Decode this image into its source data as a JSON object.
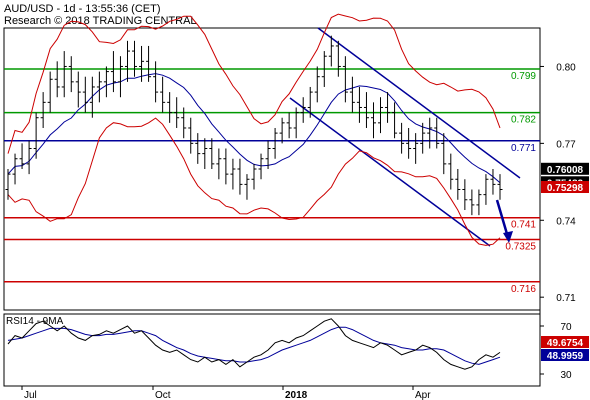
{
  "chart_data": {
    "type": "candlestick",
    "title_line1": "AUD/USD - 1d - 13:55:36 (CET)",
    "title_line2": "Research © 2018 TRADING CENTRAL",
    "x_tick_labels": [
      "Jul",
      "Oct",
      "2018",
      "Apr"
    ],
    "price_axis": {
      "ylim": [
        0.705,
        0.815
      ],
      "ticks": [
        {
          "value": 0.8,
          "label": "0.80"
        },
        {
          "value": 0.77,
          "label": "0.77"
        },
        {
          "value": 0.74,
          "label": "0.74"
        },
        {
          "value": 0.71,
          "label": "0.71"
        }
      ]
    },
    "levels": [
      {
        "value": 0.799,
        "label": "0.799",
        "color": "#009900"
      },
      {
        "value": 0.782,
        "label": "0.782",
        "color": "#009900"
      },
      {
        "value": 0.771,
        "label": "0.771",
        "color": "#000099"
      },
      {
        "value": 0.741,
        "label": "0.741",
        "color": "#cc0000"
      },
      {
        "value": 0.7325,
        "label": "0.7325",
        "color": "#cc0000"
      },
      {
        "value": 0.716,
        "label": "0.716",
        "color": "#cc0000"
      }
    ],
    "price_badges": [
      {
        "value": 0.76008,
        "label": "0.76008",
        "bg": "#000000",
        "fg": "#ffffff"
      },
      {
        "value": 0.75482,
        "label": "0.75482",
        "bg": "#000000",
        "fg": "#ffffff"
      },
      {
        "value": 0.75298,
        "label": "0.75298",
        "bg": "#cc0000",
        "fg": "#ffffff"
      }
    ],
    "bars": [
      [
        0.752,
        0.76,
        0.748,
        0.758
      ],
      [
        0.758,
        0.766,
        0.754,
        0.764
      ],
      [
        0.764,
        0.77,
        0.76,
        0.762
      ],
      [
        0.762,
        0.771,
        0.758,
        0.768
      ],
      [
        0.768,
        0.782,
        0.764,
        0.78
      ],
      [
        0.78,
        0.79,
        0.776,
        0.786
      ],
      [
        0.786,
        0.798,
        0.782,
        0.795
      ],
      [
        0.795,
        0.802,
        0.788,
        0.792
      ],
      [
        0.792,
        0.806,
        0.788,
        0.8
      ],
      [
        0.8,
        0.804,
        0.79,
        0.794
      ],
      [
        0.794,
        0.798,
        0.784,
        0.79
      ],
      [
        0.79,
        0.796,
        0.782,
        0.786
      ],
      [
        0.786,
        0.796,
        0.78,
        0.792
      ],
      [
        0.792,
        0.798,
        0.786,
        0.794
      ],
      [
        0.794,
        0.8,
        0.788,
        0.798
      ],
      [
        0.798,
        0.806,
        0.79,
        0.794
      ],
      [
        0.794,
        0.804,
        0.788,
        0.8
      ],
      [
        0.8,
        0.81,
        0.794,
        0.806
      ],
      [
        0.806,
        0.81,
        0.796,
        0.8
      ],
      [
        0.8,
        0.808,
        0.794,
        0.802
      ],
      [
        0.802,
        0.808,
        0.794,
        0.796
      ],
      [
        0.796,
        0.802,
        0.786,
        0.79
      ],
      [
        0.79,
        0.796,
        0.782,
        0.786
      ],
      [
        0.786,
        0.79,
        0.778,
        0.782
      ],
      [
        0.782,
        0.788,
        0.776,
        0.78
      ],
      [
        0.78,
        0.784,
        0.772,
        0.776
      ],
      [
        0.776,
        0.78,
        0.766,
        0.77
      ],
      [
        0.77,
        0.774,
        0.762,
        0.766
      ],
      [
        0.766,
        0.772,
        0.76,
        0.768
      ],
      [
        0.768,
        0.772,
        0.76,
        0.762
      ],
      [
        0.762,
        0.768,
        0.756,
        0.764
      ],
      [
        0.764,
        0.768,
        0.754,
        0.758
      ],
      [
        0.758,
        0.764,
        0.752,
        0.76
      ],
      [
        0.76,
        0.764,
        0.75,
        0.754
      ],
      [
        0.754,
        0.758,
        0.748,
        0.756
      ],
      [
        0.756,
        0.762,
        0.752,
        0.76
      ],
      [
        0.76,
        0.766,
        0.756,
        0.764
      ],
      [
        0.764,
        0.771,
        0.76,
        0.768
      ],
      [
        0.768,
        0.776,
        0.764,
        0.774
      ],
      [
        0.774,
        0.78,
        0.77,
        0.778
      ],
      [
        0.778,
        0.782,
        0.772,
        0.776
      ],
      [
        0.776,
        0.784,
        0.772,
        0.782
      ],
      [
        0.782,
        0.788,
        0.778,
        0.784
      ],
      [
        0.784,
        0.792,
        0.78,
        0.79
      ],
      [
        0.79,
        0.8,
        0.786,
        0.796
      ],
      [
        0.796,
        0.806,
        0.792,
        0.804
      ],
      [
        0.804,
        0.812,
        0.8,
        0.808
      ],
      [
        0.808,
        0.81,
        0.796,
        0.8
      ],
      [
        0.8,
        0.804,
        0.786,
        0.79
      ],
      [
        0.79,
        0.796,
        0.782,
        0.786
      ],
      [
        0.786,
        0.792,
        0.778,
        0.784
      ],
      [
        0.784,
        0.79,
        0.776,
        0.78
      ],
      [
        0.78,
        0.786,
        0.772,
        0.778
      ],
      [
        0.778,
        0.788,
        0.774,
        0.784
      ],
      [
        0.784,
        0.79,
        0.778,
        0.782
      ],
      [
        0.782,
        0.786,
        0.772,
        0.774
      ],
      [
        0.774,
        0.778,
        0.766,
        0.77
      ],
      [
        0.77,
        0.776,
        0.764,
        0.768
      ],
      [
        0.768,
        0.774,
        0.762,
        0.77
      ],
      [
        0.77,
        0.778,
        0.766,
        0.774
      ],
      [
        0.774,
        0.78,
        0.768,
        0.776
      ],
      [
        0.776,
        0.78,
        0.768,
        0.77
      ],
      [
        0.77,
        0.774,
        0.758,
        0.762
      ],
      [
        0.762,
        0.766,
        0.752,
        0.756
      ],
      [
        0.756,
        0.76,
        0.748,
        0.752
      ],
      [
        0.752,
        0.756,
        0.744,
        0.748
      ],
      [
        0.748,
        0.752,
        0.742,
        0.746
      ],
      [
        0.746,
        0.752,
        0.742,
        0.75
      ],
      [
        0.75,
        0.758,
        0.746,
        0.756
      ],
      [
        0.756,
        0.76,
        0.75,
        0.754
      ],
      [
        0.754,
        0.758,
        0.748,
        0.752
      ]
    ],
    "rsi_panel": {
      "label": "RSI14 - 9MA",
      "ylim": [
        20,
        80
      ],
      "ticks": [
        {
          "value": 70,
          "label": "70"
        },
        {
          "value": 30,
          "label": "30"
        }
      ],
      "badges": [
        {
          "value": 49.6754,
          "label": "49.6754",
          "bg": "#cc0000",
          "fg": "#ffffff"
        },
        {
          "value": 48.9959,
          "label": "48.9959",
          "bg": "#000099",
          "fg": "#ffffff"
        }
      ],
      "rsi": [
        55,
        62,
        60,
        66,
        72,
        74,
        70,
        66,
        70,
        64,
        60,
        58,
        62,
        63,
        66,
        64,
        67,
        70,
        64,
        66,
        60,
        54,
        50,
        48,
        50,
        46,
        42,
        40,
        44,
        40,
        42,
        38,
        42,
        36,
        40,
        44,
        46,
        50,
        56,
        58,
        56,
        60,
        62,
        66,
        70,
        74,
        76,
        70,
        62,
        58,
        56,
        54,
        52,
        56,
        54,
        50,
        46,
        48,
        50,
        54,
        52,
        48,
        42,
        38,
        36,
        34,
        36,
        42,
        46,
        44,
        48
      ],
      "ma": [
        58,
        59,
        60,
        62,
        64,
        66,
        68,
        68,
        68,
        67,
        65,
        63,
        62,
        62,
        63,
        63,
        64,
        65,
        66,
        66,
        64,
        62,
        58,
        55,
        52,
        50,
        47,
        45,
        44,
        43,
        42,
        41,
        41,
        40,
        40,
        41,
        42,
        44,
        47,
        50,
        52,
        54,
        56,
        58,
        61,
        64,
        67,
        69,
        69,
        67,
        64,
        61,
        58,
        56,
        55,
        54,
        52,
        51,
        50,
        50,
        51,
        51,
        50,
        47,
        44,
        41,
        39,
        38,
        40,
        42,
        44
      ]
    }
  }
}
